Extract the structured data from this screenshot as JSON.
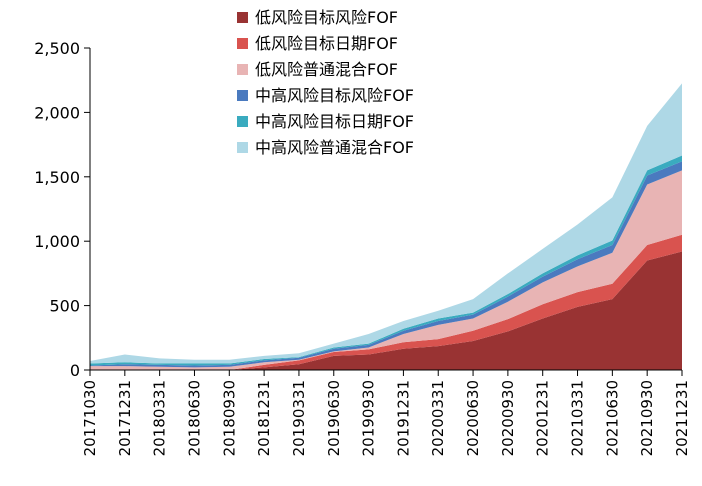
{
  "chart_data": {
    "type": "area",
    "stacked": true,
    "x": [
      "20171030",
      "20171231",
      "20180331",
      "20180630",
      "20180930",
      "20181231",
      "20190331",
      "20190630",
      "20190930",
      "20191231",
      "20200331",
      "20200630",
      "20200930",
      "20201231",
      "20210331",
      "20210630",
      "20210930",
      "20211231"
    ],
    "ylim": [
      0,
      2500
    ],
    "yticks": [
      0,
      500,
      1000,
      1500,
      2000,
      2500
    ],
    "ytick_labels": [
      "0",
      "500",
      "1,000",
      "1,500",
      "2,000",
      "2,500"
    ],
    "legend_position": "top-center",
    "grid": false,
    "series": [
      {
        "name": "低风险目标风险FOF",
        "color": "#993333",
        "values": [
          0,
          0,
          0,
          0,
          0,
          20,
          45,
          110,
          120,
          165,
          185,
          225,
          300,
          400,
          490,
          550,
          850,
          920
        ]
      },
      {
        "name": "低风险目标日期FOF",
        "color": "#d9534f",
        "values": [
          0,
          0,
          0,
          0,
          0,
          20,
          30,
          30,
          40,
          50,
          55,
          80,
          95,
          110,
          115,
          120,
          120,
          130
        ]
      },
      {
        "name": "低风险普通混合FOF",
        "color": "#e8b4b4",
        "values": [
          30,
          30,
          25,
          20,
          25,
          20,
          5,
          5,
          15,
          65,
          110,
          95,
          135,
          170,
          200,
          240,
          470,
          500
        ]
      },
      {
        "name": "中高风险目标风险FOF",
        "color": "#4a7abf",
        "values": [
          5,
          15,
          15,
          15,
          15,
          15,
          15,
          20,
          20,
          25,
          30,
          30,
          40,
          45,
          55,
          60,
          70,
          70
        ]
      },
      {
        "name": "中高风险目标日期FOF",
        "color": "#3aabbf",
        "values": [
          15,
          15,
          10,
          15,
          10,
          10,
          5,
          10,
          10,
          15,
          20,
          15,
          20,
          25,
          30,
          35,
          40,
          45
        ]
      },
      {
        "name": "中高风险普通混合FOF",
        "color": "#aed8e6",
        "values": [
          20,
          60,
          40,
          30,
          30,
          25,
          30,
          30,
          75,
          60,
          60,
          105,
          160,
          190,
          240,
          335,
          345,
          560
        ]
      }
    ]
  }
}
